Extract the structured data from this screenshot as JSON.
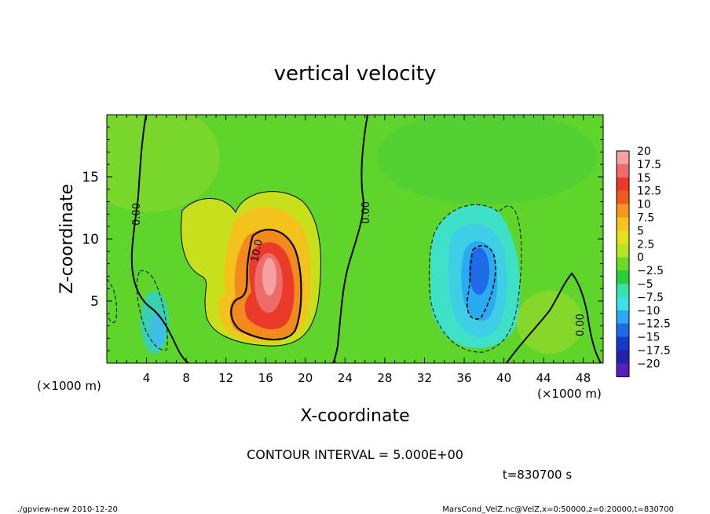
{
  "chart_data": {
    "type": "heatmap",
    "title": "vertical velocity",
    "xlabel": "X-coordinate",
    "ylabel": "Z-coordinate",
    "x_unit": "(×1000 m)",
    "x_unit_right": "(×1000 m)",
    "xlim": [
      0,
      50
    ],
    "ylim": [
      0,
      20
    ],
    "x_ticks": [
      "4",
      "8",
      "12",
      "16",
      "20",
      "24",
      "28",
      "32",
      "36",
      "40",
      "44",
      "48"
    ],
    "y_ticks": [
      "5",
      "10",
      "15"
    ],
    "contour_interval_text": "CONTOUR INTERVAL = 5.000E+00",
    "time_text": "t=830700 s",
    "contour_labels": [
      "0.00",
      "0.00",
      "10.0",
      "0.00"
    ],
    "colorbar": {
      "labels": [
        "20",
        "17.5",
        "15",
        "12.5",
        "10",
        "7.5",
        "5",
        "2.5",
        "0",
        "−2.5",
        "−5",
        "−7.5",
        "−10",
        "−12.5",
        "−15",
        "−17.5",
        "−20"
      ],
      "colors": [
        "#f7a1a1",
        "#ee6b6b",
        "#ea3a2a",
        "#f05a1e",
        "#f6961e",
        "#f7c41c",
        "#e4e01c",
        "#b6e61e",
        "#6bdb2a",
        "#2ccd3a",
        "#38e3a8",
        "#3ee0e6",
        "#2aaaf2",
        "#1f6ae6",
        "#1838c8",
        "#2222aa",
        "#5a1ec0"
      ]
    },
    "features": [
      {
        "kind": "updraft",
        "x": 16,
        "z": 7,
        "peak": 19
      },
      {
        "kind": "weak updraft",
        "x": 11,
        "z": 12,
        "peak": 3
      },
      {
        "kind": "downdraft",
        "x": 37,
        "z": 7,
        "peak": -13
      },
      {
        "kind": "weak downdraft",
        "x": 5,
        "z": 3,
        "peak": -6
      },
      {
        "kind": "weak updraft",
        "x": 45,
        "z": 3,
        "peak": 4
      }
    ]
  },
  "footer": {
    "left": "./gpview-new 2010-12-20",
    "right": "MarsCond_VelZ.nc@VelZ,x=0:50000,z=0:20000,t=830700"
  }
}
